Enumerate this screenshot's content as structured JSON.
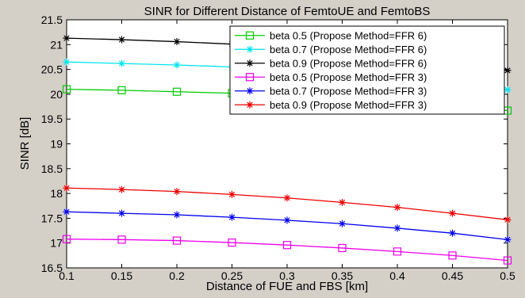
{
  "chart_data": {
    "type": "line",
    "title": "SINR for Different Distance of FemtoUE and FemtoBS",
    "xlabel": "Distance of FUE and FBS [km]",
    "ylabel": "SINR [dB]",
    "xlim": [
      0.1,
      0.5
    ],
    "ylim": [
      16.5,
      21.5
    ],
    "xticks": [
      "0.1",
      "0.15",
      "0.2",
      "0.25",
      "0.3",
      "0.35",
      "0.4",
      "0.45",
      "0.5"
    ],
    "yticks": [
      "16.5",
      "17",
      "17.5",
      "18",
      "18.5",
      "19",
      "19.5",
      "20",
      "20.5",
      "21",
      "21.5"
    ],
    "grid": false,
    "legend_position": "top-right",
    "x": [
      0.1,
      0.15,
      0.2,
      0.25,
      0.3,
      0.35,
      0.4,
      0.45,
      0.5
    ],
    "series": [
      {
        "name": "beta 0.5 (Propose Method=FFR 6)",
        "color": "#00cc00",
        "marker": "square",
        "values": [
          20.1,
          20.08,
          20.05,
          20.02,
          19.98,
          19.92,
          19.86,
          19.78,
          19.67
        ]
      },
      {
        "name": "beta 0.7 (Propose Method=FFR 6)",
        "color": "#00e5ee",
        "marker": "star",
        "values": [
          20.65,
          20.62,
          20.59,
          20.55,
          20.5,
          20.44,
          20.37,
          20.26,
          20.09
        ]
      },
      {
        "name": "beta 0.9 (Propose Method=FFR 6)",
        "color": "#000000",
        "marker": "star",
        "values": [
          21.13,
          21.1,
          21.06,
          21.01,
          20.95,
          20.88,
          20.8,
          20.66,
          20.48
        ]
      },
      {
        "name": "beta 0.5 (Propose Method=FFR 3)",
        "color": "#ee00ee",
        "marker": "square",
        "values": [
          17.08,
          17.07,
          17.05,
          17.01,
          16.96,
          16.9,
          16.83,
          16.75,
          16.65
        ]
      },
      {
        "name": "beta 0.7 (Propose Method=FFR 3)",
        "color": "#0000ee",
        "marker": "star",
        "values": [
          17.63,
          17.6,
          17.57,
          17.52,
          17.46,
          17.39,
          17.3,
          17.2,
          17.07
        ]
      },
      {
        "name": "beta 0.9 (Propose Method=FFR 3)",
        "color": "#ee0000",
        "marker": "star",
        "values": [
          18.11,
          18.08,
          18.04,
          17.98,
          17.91,
          17.82,
          17.72,
          17.6,
          17.47
        ]
      }
    ]
  }
}
